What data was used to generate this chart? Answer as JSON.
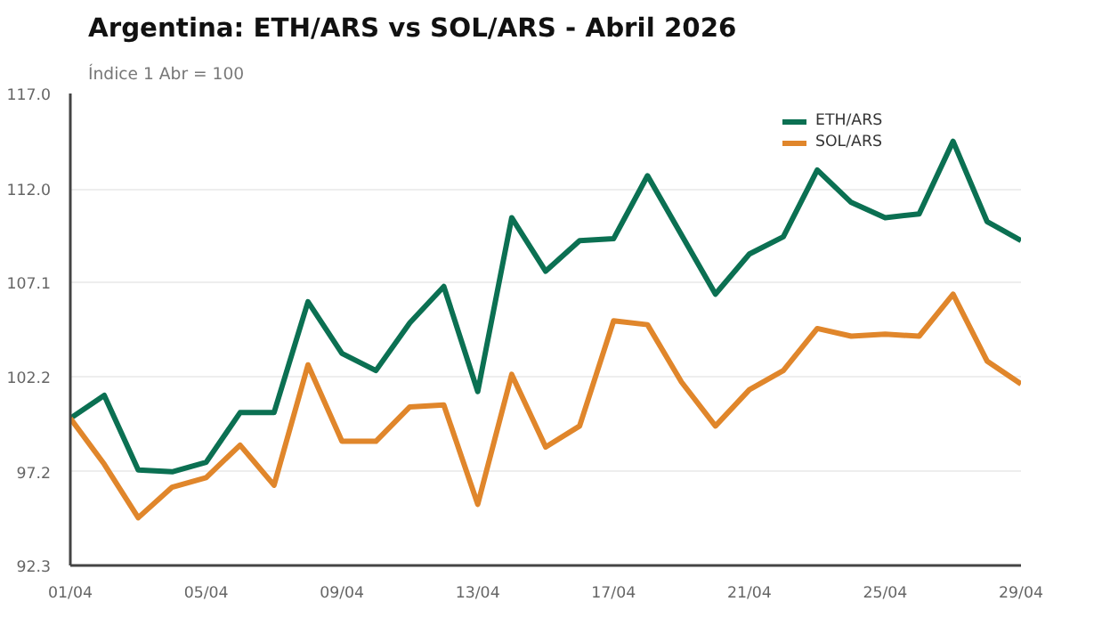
{
  "chart_data": {
    "type": "line",
    "title": "Argentina: ETH/ARS vs SOL/ARS - Abril 2026",
    "subtitle": "Índice 1 Abr = 100",
    "x": [
      "2026-04-01",
      "2026-04-02",
      "2026-04-03",
      "2026-04-04",
      "2026-04-05",
      "2026-04-06",
      "2026-04-07",
      "2026-04-08",
      "2026-04-09",
      "2026-04-10",
      "2026-04-11",
      "2026-04-12",
      "2026-04-13",
      "2026-04-14",
      "2026-04-15",
      "2026-04-16",
      "2026-04-17",
      "2026-04-18",
      "2026-04-19",
      "2026-04-20",
      "2026-04-21",
      "2026-04-22",
      "2026-04-23",
      "2026-04-24",
      "2026-04-25",
      "2026-04-26",
      "2026-04-27",
      "2026-04-28",
      "2026-04-29"
    ],
    "series": [
      {
        "name": "ETH/ARS",
        "color": "#0b7052",
        "values": [
          100.0,
          101.2,
          97.3,
          97.2,
          97.7,
          100.3,
          100.3,
          106.1,
          103.4,
          102.5,
          105.0,
          106.9,
          101.4,
          110.5,
          107.7,
          109.3,
          109.4,
          112.7,
          109.6,
          106.5,
          108.6,
          109.5,
          113.0,
          111.3,
          110.5,
          110.7,
          114.5,
          110.3,
          109.3
        ]
      },
      {
        "name": "SOL/ARS",
        "color": "#e0862b",
        "values": [
          100.0,
          97.6,
          94.8,
          96.4,
          96.9,
          98.6,
          96.5,
          102.8,
          98.8,
          98.8,
          100.6,
          100.7,
          95.5,
          102.3,
          98.5,
          99.6,
          105.1,
          104.9,
          101.9,
          99.6,
          101.5,
          102.5,
          104.7,
          104.3,
          104.4,
          104.3,
          106.5,
          103.0,
          101.8
        ]
      }
    ],
    "xlim": [
      "2026-04-01",
      "2026-04-29"
    ],
    "xticks": [
      {
        "value": "2026-04-01",
        "label": "01/04"
      },
      {
        "value": "2026-04-05",
        "label": "05/04"
      },
      {
        "value": "2026-04-09",
        "label": "09/04"
      },
      {
        "value": "2026-04-13",
        "label": "13/04"
      },
      {
        "value": "2026-04-17",
        "label": "17/04"
      },
      {
        "value": "2026-04-21",
        "label": "21/04"
      },
      {
        "value": "2026-04-25",
        "label": "25/04"
      },
      {
        "value": "2026-04-29",
        "label": "29/04"
      }
    ],
    "ylim": [
      92.3,
      117.0
    ],
    "yticks": [
      {
        "value": 92.3,
        "label": "92.3"
      },
      {
        "value": 97.2,
        "label": "97.2"
      },
      {
        "value": 102.2,
        "label": "102.2"
      },
      {
        "value": 107.1,
        "label": "107.1"
      },
      {
        "value": 112.0,
        "label": "112.0"
      },
      {
        "value": 117.0,
        "label": "117.0"
      }
    ],
    "grid": "y",
    "legend": "top right",
    "line_style": "solid"
  }
}
